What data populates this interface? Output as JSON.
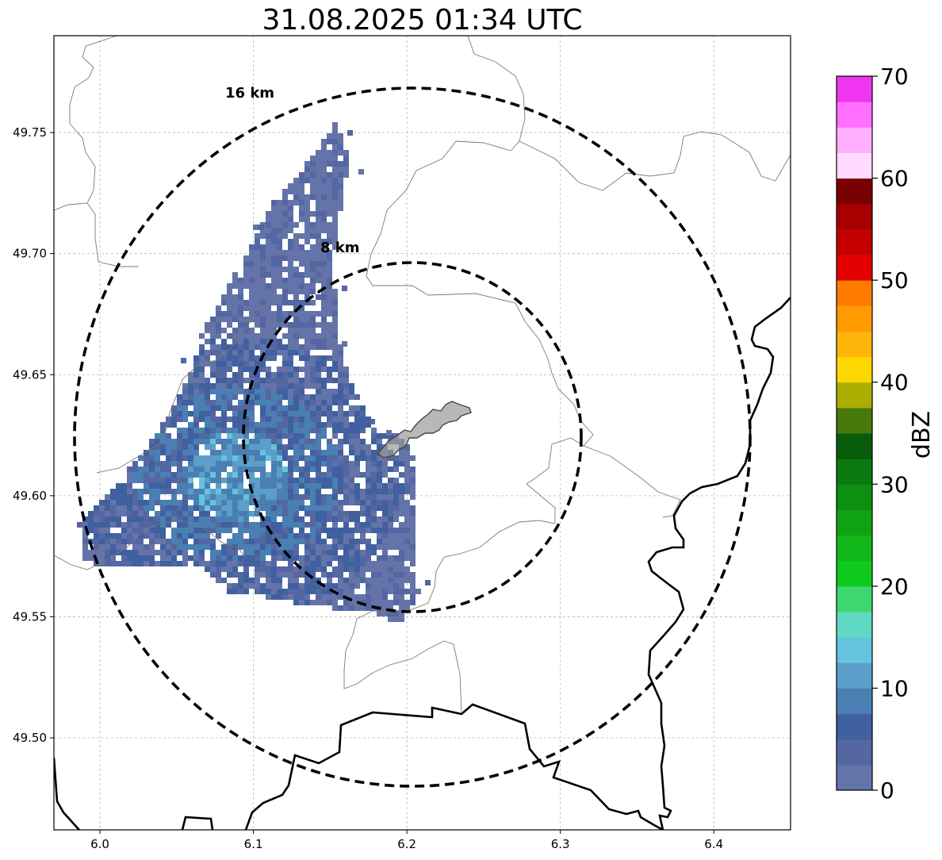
{
  "title": "31.08.2025 01:34 UTC",
  "map": {
    "x_ticks": [
      "6.0",
      "6.1",
      "6.2",
      "6.3",
      "6.4"
    ],
    "y_ticks": [
      "49.75",
      "49.70",
      "49.65",
      "49.60",
      "49.55",
      "49.50"
    ],
    "lon_range": [
      5.97,
      6.45
    ],
    "lat_range": [
      49.462,
      49.79
    ],
    "grid": true,
    "radar_center": {
      "lon": 6.203,
      "lat": 49.623
    },
    "range_rings": [
      {
        "label": "8 km",
        "radius_km": 8
      },
      {
        "label": "16 km",
        "radius_km": 16
      }
    ],
    "echo_region": {
      "description": "Reflectivity echoes over western area, mostly 0-15 dBZ",
      "max_dbz": 16
    }
  },
  "colorbar": {
    "label": "dBZ",
    "ticks": [
      "0",
      "10",
      "20",
      "30",
      "40",
      "50",
      "60",
      "70"
    ],
    "min": 0,
    "max": 70,
    "step": 2.5,
    "colors": [
      "#6474a8",
      "#5467a2",
      "#40609f",
      "#4a7fb3",
      "#5a9ec9",
      "#66c3dd",
      "#60d9c3",
      "#3ed66e",
      "#10c91d",
      "#12b81a",
      "#0fa313",
      "#0d8f11",
      "#0a7a0f",
      "#075c0b",
      "#477a0b",
      "#abad00",
      "#fed600",
      "#ffb509",
      "#ff9a00",
      "#ff7b00",
      "#e20000",
      "#c40000",
      "#a80000",
      "#790000",
      "#ffdcff",
      "#ffb0ff",
      "#ff6eff",
      "#ef35ef"
    ]
  }
}
